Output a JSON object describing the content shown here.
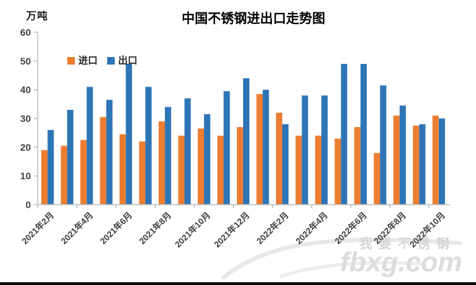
{
  "page": {
    "unit_label": "万吨",
    "title": "中国不锈钢进出口走势图"
  },
  "legend": {
    "import_label": "进口",
    "export_label": "出口"
  },
  "watermark": {
    "sub_text": "我要不锈钢",
    "main_text": "fbxg.com"
  },
  "colors": {
    "import": "#ED7D31",
    "export": "#2E75B6",
    "axis": "#BFBFBF",
    "tick_text": "#3F3F3F",
    "watermark": "#DCDCDC"
  },
  "chart_data": {
    "type": "bar",
    "title": "中国不锈钢进出口走势图",
    "ylabel": "万吨",
    "ylim": [
      0,
      60
    ],
    "ytick_step": 10,
    "grid": false,
    "legend_position": "top-left-inside",
    "categories": [
      "2021年2月",
      "2021年3月",
      "2021年4月",
      "2021年5月",
      "2021年6月",
      "2021年7月",
      "2021年8月",
      "2021年9月",
      "2021年10月",
      "2021年11月",
      "2021年12月",
      "2022年1月",
      "2022年2月",
      "2022年3月",
      "2022年4月",
      "2022年5月",
      "2022年6月",
      "2022年7月",
      "2022年8月",
      "2022年9月",
      "2022年10月"
    ],
    "xtick_shown_every": 2,
    "xtick_labels": [
      "2021年2月",
      "2021年4月",
      "2021年6月",
      "2021年8月",
      "2021年10月",
      "2021年12月",
      "2022年2月",
      "2022年4月",
      "2022年6月",
      "2022年8月",
      "2022年10月"
    ],
    "series": [
      {
        "name": "进口",
        "values": [
          19,
          20.5,
          22.5,
          30.5,
          24.5,
          22,
          29,
          24,
          26.5,
          24,
          27,
          38.5,
          32,
          24,
          24,
          23,
          27,
          18,
          31,
          27.5,
          31
        ]
      },
      {
        "name": "出口",
        "values": [
          26,
          33,
          41,
          36.5,
          49,
          41,
          34,
          37,
          31.5,
          39.5,
          44,
          40,
          28,
          38,
          38,
          49,
          49,
          41.5,
          34.5,
          28,
          30
        ]
      }
    ]
  }
}
